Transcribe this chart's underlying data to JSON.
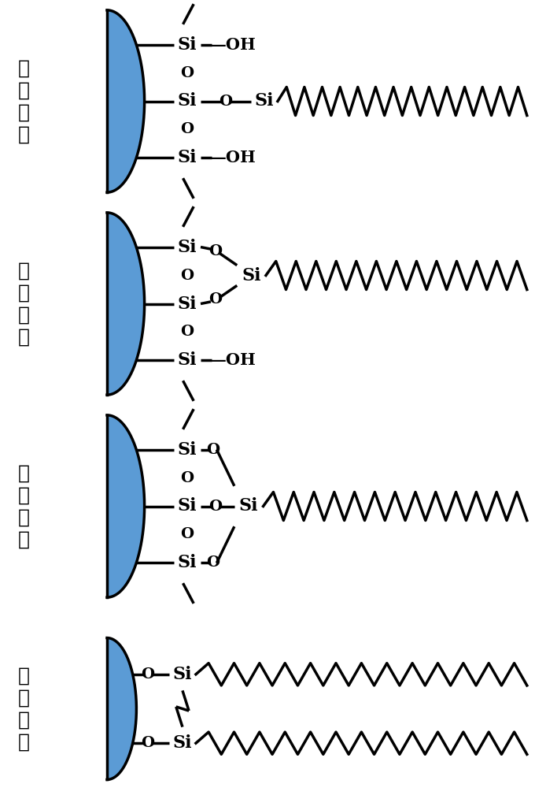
{
  "background_color": "#ffffff",
  "blob_color": "#5b9bd5",
  "line_color": "#000000",
  "labels": [
    "单\n键\n键\n合",
    "双\n键\n键\n合",
    "三\n键\n键\n合",
    "双\n齿\n键\n合"
  ],
  "label_fontsize": 18,
  "si_fontsize": 16,
  "o_fontsize": 14,
  "oh_fontsize": 15,
  "lw": 2.5
}
